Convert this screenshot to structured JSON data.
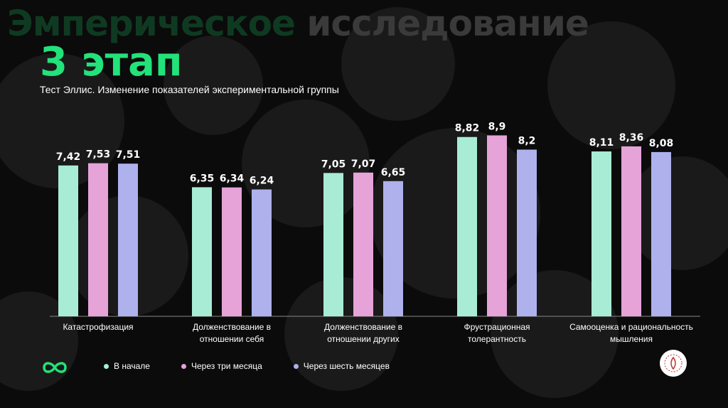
{
  "heading": {
    "word1": "Эмперическое",
    "word2": "исследование"
  },
  "stage": "3 этап",
  "subtitle": "Тест Эллис. Изменение показателей экспериментальной группы",
  "colors": {
    "accent": "#22e27a",
    "s1": "#a8ecd6",
    "s2": "#e6a3d8",
    "s3": "#aeb1ec"
  },
  "chart_data": {
    "type": "bar",
    "categories": [
      [
        "Катастрофизация"
      ],
      [
        "Долженствование в",
        "отношении себя"
      ],
      [
        "Долженствование в",
        "отношении других"
      ],
      [
        "Фрустрационная",
        "толерантность"
      ],
      [
        "Самооценка и рациональность",
        "мышления"
      ]
    ],
    "series": [
      {
        "name": "В начале",
        "values": [
          7.42,
          6.35,
          7.05,
          8.82,
          8.11
        ],
        "labels": [
          "7,42",
          "6,35",
          "7,05",
          "8,82",
          "8,11"
        ],
        "color": "#a8ecd6"
      },
      {
        "name": "Через три месяца",
        "values": [
          7.53,
          6.34,
          7.07,
          8.9,
          8.36
        ],
        "labels": [
          "7,53",
          "6,34",
          "7,07",
          "8,9",
          "8,36"
        ],
        "color": "#e6a3d8"
      },
      {
        "name": "Через шесть месяцев",
        "values": [
          7.51,
          6.24,
          6.65,
          8.2,
          8.08
        ],
        "labels": [
          "7,51",
          "6,24",
          "6,65",
          "8,2",
          "8,08"
        ],
        "color": "#aeb1ec"
      }
    ],
    "legend_position": "bottom",
    "grid": false
  },
  "legend": [
    {
      "label": "В начале",
      "color": "#a8ecd6"
    },
    {
      "label": "Через три месяца",
      "color": "#e6a3d8"
    },
    {
      "label": "Через шесть месяцев",
      "color": "#aeb1ec"
    }
  ]
}
